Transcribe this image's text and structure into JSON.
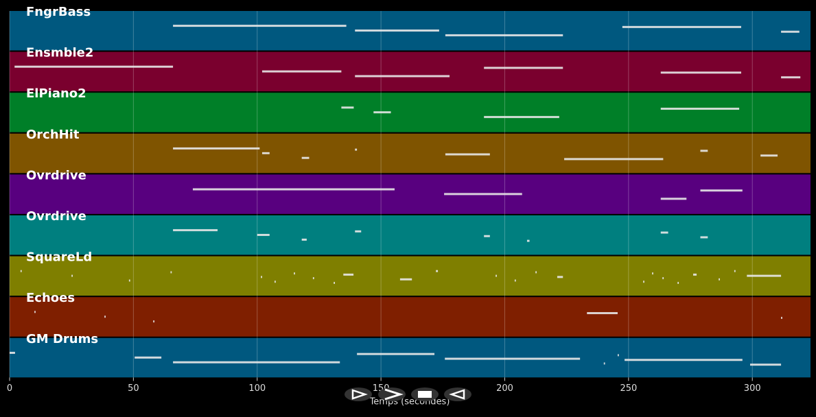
{
  "chart_data": {
    "type": "pianoroll",
    "x_label": "Temps (secondes)",
    "xlim": [
      0,
      323.5
    ],
    "xticks": [
      0,
      50,
      100,
      150,
      200,
      250,
      300
    ],
    "grid": true,
    "tracks": [
      {
        "name": "FngrBass",
        "color": "#00587f",
        "notes": [
          [
            66,
            136
          ],
          [
            139.5,
            173.5
          ],
          [
            176,
            223.5
          ],
          [
            247.5,
            295.5
          ],
          [
            311.6,
            319
          ]
        ]
      },
      {
        "name": "Ensmble2",
        "color": "#7a002e",
        "notes": [
          [
            2,
            66
          ],
          [
            102,
            134
          ],
          [
            139.5,
            177.7
          ],
          [
            191.6,
            223.5
          ],
          [
            263,
            295.5
          ],
          [
            311.6,
            319.4
          ]
        ]
      },
      {
        "name": "ElPiano2",
        "color": "#007f28",
        "notes": [
          [
            134,
            139
          ],
          [
            147,
            154
          ],
          [
            191.6,
            222
          ],
          [
            263,
            294.7
          ]
        ]
      },
      {
        "name": "OrchHit",
        "color": "#7f5400",
        "notes": [
          [
            66,
            101
          ],
          [
            102,
            105
          ],
          [
            118,
            121
          ],
          [
            139.5,
            140.3
          ],
          [
            176,
            194
          ],
          [
            224,
            264
          ],
          [
            279,
            282
          ],
          [
            303.3,
            310.2
          ]
        ]
      },
      {
        "name": "Ovrdrive",
        "color": "#58007f",
        "notes": [
          [
            74,
            155.5
          ],
          [
            175.5,
            207
          ],
          [
            263,
            273.4
          ],
          [
            279,
            296
          ]
        ]
      },
      {
        "name": "Ovrdrive",
        "color": "#007f7f",
        "notes": [
          [
            66,
            84
          ],
          [
            100,
            105
          ],
          [
            118,
            120
          ],
          [
            139.5,
            142
          ],
          [
            191.6,
            194
          ],
          [
            209,
            210
          ],
          [
            263,
            266
          ],
          [
            279,
            282
          ]
        ]
      },
      {
        "name": "SquareLd",
        "color": "#7f7f00",
        "notes": [
          [
            4.4,
            4.9
          ],
          [
            25,
            25.5
          ],
          [
            48.2,
            48.7
          ],
          [
            65,
            65.5
          ],
          [
            101.5,
            102
          ],
          [
            107,
            107.5
          ],
          [
            114.8,
            115.3
          ],
          [
            122.5,
            123
          ],
          [
            130.9,
            131.4
          ],
          [
            134.8,
            138.9
          ],
          [
            157.7,
            162.5
          ],
          [
            172.2,
            173
          ],
          [
            196.3,
            196.8
          ],
          [
            204,
            204.5
          ],
          [
            212.4,
            212.9
          ],
          [
            221.2,
            223.5
          ],
          [
            255.9,
            256.4
          ],
          [
            259.5,
            260
          ],
          [
            263.7,
            264.2
          ],
          [
            269.8,
            270.3
          ],
          [
            276.1,
            277.5
          ],
          [
            286.4,
            286.9
          ],
          [
            292.7,
            293.2
          ],
          [
            297.8,
            311.6
          ]
        ]
      },
      {
        "name": "Echoes",
        "color": "#7f1f00",
        "notes": [
          [
            10,
            10.5
          ],
          [
            38.3,
            38.8
          ],
          [
            58,
            58.5
          ],
          [
            233.2,
            245.6
          ],
          [
            311.6,
            312.1
          ]
        ]
      },
      {
        "name": "GM Drums",
        "color": "#00587f",
        "notes": [
          [
            0,
            2.2
          ],
          [
            50.5,
            61.3
          ],
          [
            66,
            133.4
          ],
          [
            140.3,
            171.6
          ],
          [
            175.8,
            230.4
          ],
          [
            240,
            240.5
          ],
          [
            245.6,
            246.1
          ],
          [
            248.4,
            296
          ],
          [
            299.1,
            311.6
          ]
        ]
      }
    ]
  }
}
